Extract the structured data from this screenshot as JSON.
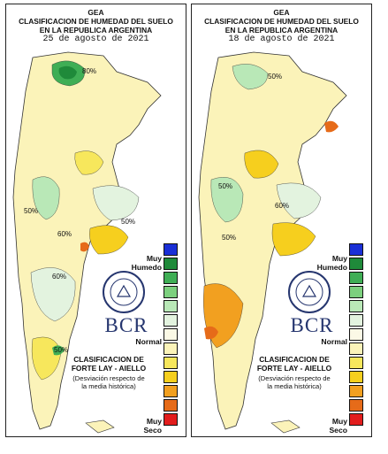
{
  "header": {
    "line1": "GEA",
    "line2": "CLASIFICACION DE HUMEDAD DEL SUELO",
    "line3": "EN LA REPUBLICA ARGENTINA"
  },
  "panels": [
    {
      "date": "25 de agosto de 2021",
      "contour_labels": [
        "80%",
        "50%",
        "60%",
        "50%",
        "60%",
        "50%"
      ]
    },
    {
      "date": "18 de agosto de 2021",
      "contour_labels": [
        "50%",
        "60%",
        "50%",
        "50%"
      ]
    }
  ],
  "legend": {
    "top_label_1": "Muy",
    "top_label_2": "Humedo",
    "mid_label": "Normal",
    "bottom_label_1": "Muy",
    "bottom_label_2": "Seco",
    "title_1": "CLASIFICACION DE",
    "title_2": "FORTE LAY - AIELLO",
    "note_1": "(Desviación respecto de",
    "note_2": "la media histórica)",
    "colors": [
      "#1a2fd6",
      "#1f8a3a",
      "#3fae55",
      "#7cd07e",
      "#b9e8b7",
      "#e3f3df",
      "#fbf9e6",
      "#fbf3b9",
      "#f7e75c",
      "#f6cf1e",
      "#f2a020",
      "#e66b19",
      "#e21d1d"
    ]
  },
  "logo": {
    "text": "BCR"
  }
}
